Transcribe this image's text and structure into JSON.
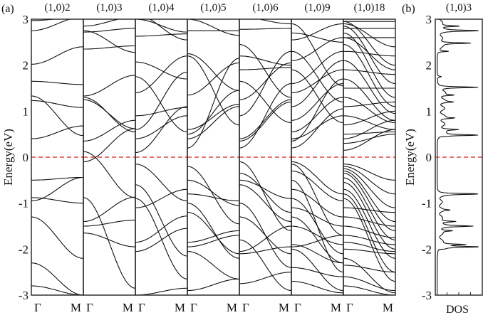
{
  "chart_data": [
    {
      "type": "line",
      "panel_label": "(a)",
      "ylabel": "Energy(eV)",
      "ylim": [
        -3,
        3
      ],
      "yticks": [
        "3",
        "2",
        "1",
        "0",
        "-1",
        "-2",
        "-3"
      ],
      "fermi_level": 0,
      "fermi_color": "#d62020",
      "band_interpolation": "cosine between Γ and M energies",
      "panels": [
        {
          "title": "(1,0)2",
          "xticks": [
            "Γ",
            "M"
          ],
          "bands": [
            [
              2.97,
              3.05
            ],
            [
              2.75,
              3.05
            ],
            [
              2.02,
              2.4
            ],
            [
              1.65,
              1.58
            ],
            [
              1.33,
              0.47
            ],
            [
              1.23,
              1.08
            ],
            [
              0.4,
              0.68
            ],
            [
              -0.5,
              -0.44
            ],
            [
              -0.95,
              -0.44
            ],
            [
              -0.88,
              -1.0
            ],
            [
              -1.3,
              -2.2
            ],
            [
              -2.3,
              -3.0
            ],
            [
              -2.8,
              -3.0
            ]
          ]
        },
        {
          "title": "(1,0)3",
          "xticks": [
            "Γ",
            "M"
          ],
          "bands": [
            [
              2.85,
              3.05
            ],
            [
              2.75,
              2.28
            ],
            [
              2.72,
              2.8
            ],
            [
              2.35,
              2.42
            ],
            [
              1.33,
              1.78
            ],
            [
              1.3,
              0.55
            ],
            [
              1.25,
              0.62
            ],
            [
              0.35,
              0.8
            ],
            [
              0.12,
              -0.88
            ],
            [
              -0.1,
              0.62
            ],
            [
              -0.88,
              -2.85
            ],
            [
              -1.4,
              -0.87
            ],
            [
              -1.5,
              -1.37
            ],
            [
              -1.65,
              -1.95
            ]
          ]
        },
        {
          "title": "(1,0)4",
          "xticks": [
            "Γ",
            "M"
          ],
          "bands": [
            [
              3.0,
              2.72
            ],
            [
              3.1,
              2.55
            ],
            [
              2.63,
              2.68
            ],
            [
              2.07,
              1.7
            ],
            [
              1.4,
              2.2
            ],
            [
              1.75,
              0.55
            ],
            [
              0.9,
              1.08
            ],
            [
              0.6,
              1.85
            ],
            [
              0.4,
              0.9
            ],
            [
              0.1,
              1.1
            ],
            [
              -0.15,
              -0.95
            ],
            [
              -0.6,
              -2.15
            ],
            [
              -1.1,
              -0.7
            ],
            [
              -1.85,
              -1.28
            ],
            [
              -0.9,
              -2.65
            ],
            [
              -2.05,
              -1.55
            ],
            [
              -3.0,
              -2.85
            ]
          ]
        },
        {
          "title": "(1,0)5",
          "xticks": [
            "Γ",
            "M"
          ],
          "bands": [
            [
              2.75,
              2.75
            ],
            [
              3.0,
              2.65
            ],
            [
              2.2,
              0.7
            ],
            [
              2.25,
              1.45
            ],
            [
              1.35,
              2.05
            ],
            [
              0.6,
              1.15
            ],
            [
              0.4,
              1.1
            ],
            [
              0.2,
              2.15
            ],
            [
              0.5,
              1.45
            ],
            [
              -0.2,
              -1.45
            ],
            [
              -0.5,
              -1.05
            ],
            [
              -0.8,
              -0.95
            ],
            [
              -1.0,
              -2.2
            ],
            [
              -1.85,
              -1.6
            ],
            [
              -1.95,
              -1.7
            ],
            [
              -2.05,
              -2.65
            ],
            [
              -2.9,
              -2.65
            ],
            [
              -1.2,
              -2.1
            ]
          ]
        },
        {
          "title": "(1,0)6",
          "xticks": [
            "Γ",
            "M"
          ],
          "bands": [
            [
              2.78,
              2.8
            ],
            [
              3.05,
              2.9
            ],
            [
              2.45,
              1.3
            ],
            [
              2.2,
              2.0
            ],
            [
              1.9,
              1.95
            ],
            [
              1.65,
              0.75
            ],
            [
              1.25,
              2.05
            ],
            [
              0.4,
              1.25
            ],
            [
              0.35,
              1.2
            ],
            [
              0.2,
              1.6
            ],
            [
              0.9,
              2.3
            ],
            [
              -0.1,
              -1.6
            ],
            [
              -0.35,
              -1.2
            ],
            [
              -0.6,
              -1.4
            ],
            [
              -1.0,
              -2.4
            ],
            [
              -1.3,
              -2.1
            ],
            [
              -2.05,
              -1.5
            ],
            [
              -2.1,
              -1.95
            ],
            [
              -2.75,
              -2.5
            ],
            [
              -1.8,
              -2.9
            ],
            [
              -0.5,
              -0.9
            ]
          ]
        },
        {
          "title": "(1,0)9",
          "xticks": [
            "Γ",
            "M"
          ],
          "bands": [
            [
              2.7,
              2.5
            ],
            [
              2.55,
              2.9
            ],
            [
              2.3,
              1.2
            ],
            [
              2.1,
              2.6
            ],
            [
              1.9,
              0.75
            ],
            [
              1.6,
              2.3
            ],
            [
              1.4,
              1.9
            ],
            [
              1.1,
              2.1
            ],
            [
              0.8,
              1.6
            ],
            [
              0.55,
              1.3
            ],
            [
              0.4,
              0.9
            ],
            [
              0.35,
              1.7
            ],
            [
              0.2,
              1.05
            ],
            [
              2.9,
              1.55
            ],
            [
              -0.1,
              -0.8
            ],
            [
              -0.15,
              -1.7
            ],
            [
              -0.3,
              -0.95
            ],
            [
              -0.5,
              -2.5
            ],
            [
              -0.7,
              -1.3
            ],
            [
              -0.9,
              -2.1
            ],
            [
              -1.1,
              -1.5
            ],
            [
              -1.3,
              -2.3
            ],
            [
              -1.5,
              -1.9
            ],
            [
              -1.9,
              -2.3
            ],
            [
              -1.95,
              -1.7
            ],
            [
              -2.4,
              -2.6
            ],
            [
              -2.0,
              -2.9
            ],
            [
              -2.7,
              -2.95
            ]
          ]
        },
        {
          "title": "(1,0)18",
          "xticks": [
            "Γ",
            "M"
          ],
          "bands": [
            [
              2.95,
              2.0
            ],
            [
              2.9,
              2.4
            ],
            [
              2.85,
              1.6
            ],
            [
              2.8,
              2.8
            ],
            [
              2.7,
              1.3
            ],
            [
              2.6,
              2.6
            ],
            [
              2.45,
              1.1
            ],
            [
              2.3,
              2.2
            ],
            [
              2.1,
              0.95
            ],
            [
              1.9,
              1.8
            ],
            [
              1.7,
              0.8
            ],
            [
              1.5,
              1.5
            ],
            [
              1.3,
              0.75
            ],
            [
              1.1,
              1.2
            ],
            [
              0.9,
              0.6
            ],
            [
              0.7,
              1.0
            ],
            [
              0.5,
              0.55
            ],
            [
              0.4,
              0.8
            ],
            [
              0.3,
              0.5
            ],
            [
              0.15,
              0.6
            ],
            [
              2.95,
              2.95
            ],
            [
              2.6,
              1.9
            ],
            [
              -0.15,
              -0.5
            ],
            [
              -0.2,
              -0.8
            ],
            [
              -0.25,
              -1.1
            ],
            [
              -0.3,
              -1.4
            ],
            [
              -0.35,
              -1.6
            ],
            [
              -0.45,
              -1.8
            ],
            [
              -0.55,
              -2.0
            ],
            [
              -0.7,
              -2.2
            ],
            [
              -0.8,
              -2.5
            ],
            [
              -0.9,
              -2.7
            ],
            [
              -1.1,
              -1.2
            ],
            [
              -1.3,
              -1.5
            ],
            [
              -1.5,
              -1.75
            ],
            [
              -1.7,
              -1.9
            ],
            [
              -1.85,
              -2.05
            ],
            [
              -2.0,
              -2.1
            ],
            [
              -2.2,
              -2.95
            ],
            [
              -2.35,
              -2.5
            ],
            [
              -2.6,
              -2.9
            ],
            [
              -2.8,
              -3.0
            ]
          ]
        }
      ]
    },
    {
      "type": "line",
      "panel_label": "(b)",
      "title": "(1,0)3",
      "ylabel": "Energy(eV)",
      "xlabel": "DOS",
      "ylim": [
        -3,
        3
      ],
      "yticks": [
        "3",
        "2",
        "1",
        "0",
        "-1",
        "-2",
        "-3"
      ],
      "fermi_level": 0,
      "fermi_color": "#d62020",
      "dos_peaks": [
        [
          2.85,
          0.5
        ],
        [
          2.75,
          1.0
        ],
        [
          2.48,
          0.75
        ],
        [
          2.3,
          0.2
        ],
        [
          1.75,
          0.1
        ],
        [
          1.52,
          1.0
        ],
        [
          1.35,
          0.3
        ],
        [
          1.2,
          0.25
        ],
        [
          0.85,
          0.3
        ],
        [
          0.6,
          0.4
        ],
        [
          0.48,
          1.0
        ],
        [
          -0.8,
          1.0
        ],
        [
          -1.15,
          0.2
        ],
        [
          -1.4,
          0.4
        ],
        [
          -1.5,
          0.75
        ],
        [
          -1.6,
          0.3
        ],
        [
          -1.9,
          0.6
        ],
        [
          -1.95,
          1.0
        ]
      ],
      "dos_continuum": [
        [
          -2.0,
          -0.78,
          0.12
        ],
        [
          0.45,
          1.52,
          0.18
        ],
        [
          2.3,
          3.0,
          0.12
        ]
      ]
    }
  ]
}
